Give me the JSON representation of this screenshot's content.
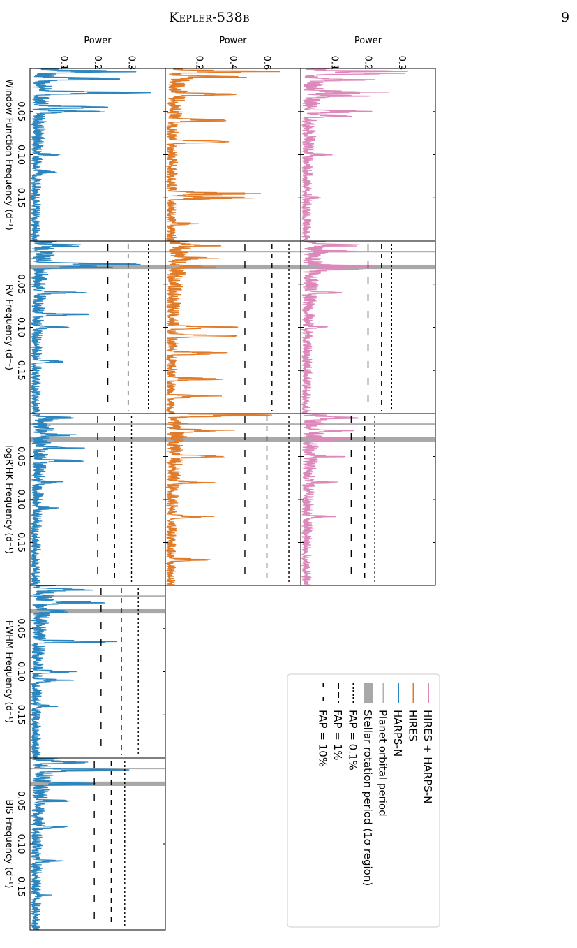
{
  "header": {
    "title": "Kepler-538b",
    "page_number": "9"
  },
  "colors": {
    "combined": "#dd88bb",
    "hires": "#e07b2a",
    "harpsn": "#2b86bf",
    "planet_period": "#b0b0b0",
    "rotation_band": "#a8a8a8",
    "fap": "#000000"
  },
  "chart_data": {
    "type": "line",
    "orientation": "rotated-90-clockwise",
    "freq_range": [
      0.0,
      0.2
    ],
    "freq_ticks": [
      "0.05",
      "0.10",
      "0.15"
    ],
    "freq_tick_values": [
      0.05,
      0.1,
      0.15
    ],
    "planet_orbital_frequency": 0.0123,
    "rotation_band": [
      0.0275,
      0.0325
    ],
    "rows": [
      {
        "id": "combined",
        "series": "HIRES + HARPS-N",
        "color_key": "combined",
        "ylabel": "Power",
        "ylim": [
          0,
          0.4
        ],
        "yticks": [
          "0.1",
          "0.2",
          "0.3"
        ],
        "ytick_values": [
          0.1,
          0.2,
          0.3
        ]
      },
      {
        "id": "hires",
        "series": "HIRES",
        "color_key": "hires",
        "ylabel": "Power",
        "ylim": [
          0,
          0.8
        ],
        "yticks": [
          "0.2",
          "0.4",
          "0.6"
        ],
        "ytick_values": [
          0.2,
          0.4,
          0.6
        ]
      },
      {
        "id": "harpsn",
        "series": "HARPS-N",
        "color_key": "harpsn",
        "ylabel": "Power",
        "ylim": [
          0,
          0.4
        ],
        "yticks": [
          "0.1",
          "0.2",
          "0.3"
        ],
        "ytick_values": [
          0.1,
          0.2,
          0.3
        ]
      }
    ],
    "columns": [
      {
        "id": "window",
        "xlabel": "Window Function Frequency (d$^{-1}$)",
        "xlabel_text": "Window Function Frequency (d⁻¹)"
      },
      {
        "id": "rv",
        "xlabel_text": "RV Frequency (d⁻¹)"
      },
      {
        "id": "logrhk",
        "xlabel_text": "logR′HK Frequency (d⁻¹)"
      },
      {
        "id": "fwhm",
        "xlabel_text": "FWHM Frequency (d⁻¹)"
      },
      {
        "id": "bis",
        "xlabel_text": "BIS Frequency (d⁻¹)"
      }
    ],
    "panels": [
      {
        "row": "combined",
        "col": "window",
        "peaks": [
          [
            0.0035,
            0.34
          ],
          [
            0.0055,
            0.33
          ],
          [
            0.013,
            0.24
          ],
          [
            0.0275,
            0.28
          ],
          [
            0.032,
            0.22
          ],
          [
            0.05,
            0.23
          ],
          [
            0.055,
            0.17
          ],
          [
            0.1,
            0.1
          ],
          [
            0.15,
            0.07
          ]
        ],
        "fap": null
      },
      {
        "row": "combined",
        "col": "rv",
        "peaks": [
          [
            0.005,
            0.22
          ],
          [
            0.012,
            0.18
          ],
          [
            0.029,
            0.23
          ],
          [
            0.033,
            0.2
          ],
          [
            0.06,
            0.13
          ],
          [
            0.1,
            0.09
          ]
        ],
        "fap": [
          0.27,
          0.24,
          0.2
        ]
      },
      {
        "row": "combined",
        "col": "logrhk",
        "peaks": [
          [
            0.005,
            0.19
          ],
          [
            0.02,
            0.16
          ],
          [
            0.03,
            0.19
          ],
          [
            0.05,
            0.15
          ],
          [
            0.08,
            0.12
          ],
          [
            0.12,
            0.11
          ]
        ],
        "fap": [
          0.22,
          0.19,
          0.15
        ]
      },
      {
        "row": "hires",
        "col": "window",
        "peaks": [
          [
            0.0035,
            0.72
          ],
          [
            0.01,
            0.5
          ],
          [
            0.03,
            0.45
          ],
          [
            0.06,
            0.45
          ],
          [
            0.085,
            0.4
          ],
          [
            0.145,
            0.6
          ],
          [
            0.15,
            0.58
          ],
          [
            0.18,
            0.2
          ]
        ],
        "fap": null
      },
      {
        "row": "hires",
        "col": "rv",
        "peaks": [
          [
            0.005,
            0.38
          ],
          [
            0.02,
            0.34
          ],
          [
            0.03,
            0.32
          ],
          [
            0.1,
            0.48
          ],
          [
            0.11,
            0.45
          ],
          [
            0.13,
            0.43
          ],
          [
            0.16,
            0.37
          ],
          [
            0.18,
            0.38
          ]
        ],
        "fap": [
          0.73,
          0.63,
          0.47
        ]
      },
      {
        "row": "hires",
        "col": "logrhk",
        "peaks": [
          [
            0.002,
            0.72
          ],
          [
            0.02,
            0.5
          ],
          [
            0.05,
            0.38
          ],
          [
            0.08,
            0.32
          ],
          [
            0.12,
            0.3
          ],
          [
            0.17,
            0.28
          ]
        ],
        "fap": [
          0.73,
          0.6,
          0.47
        ]
      },
      {
        "row": "harpsn",
        "col": "window",
        "peaks": [
          [
            0.0035,
            0.36
          ],
          [
            0.012,
            0.35
          ],
          [
            0.028,
            0.37
          ],
          [
            0.045,
            0.24
          ],
          [
            0.05,
            0.23
          ],
          [
            0.1,
            0.1
          ],
          [
            0.12,
            0.09
          ]
        ],
        "fap": null
      },
      {
        "row": "harpsn",
        "col": "rv",
        "peaks": [
          [
            0.005,
            0.21
          ],
          [
            0.027,
            0.37
          ],
          [
            0.03,
            0.26
          ],
          [
            0.06,
            0.19
          ],
          [
            0.085,
            0.2
          ],
          [
            0.1,
            0.12
          ],
          [
            0.14,
            0.11
          ]
        ],
        "fap": [
          0.35,
          0.29,
          0.23
        ]
      },
      {
        "row": "harpsn",
        "col": "logrhk",
        "peaks": [
          [
            0.005,
            0.15
          ],
          [
            0.025,
            0.16
          ],
          [
            0.04,
            0.17
          ],
          [
            0.055,
            0.17
          ],
          [
            0.08,
            0.12
          ],
          [
            0.11,
            0.1
          ]
        ],
        "fap": [
          0.3,
          0.25,
          0.2
        ]
      },
      {
        "row": "harpsn",
        "col": "fwhm",
        "peaks": [
          [
            0.005,
            0.2
          ],
          [
            0.02,
            0.25
          ],
          [
            0.03,
            0.15
          ],
          [
            0.065,
            0.27
          ],
          [
            0.1,
            0.15
          ],
          [
            0.11,
            0.13
          ],
          [
            0.14,
            0.09
          ]
        ],
        "fap": [
          0.32,
          0.27,
          0.21
        ]
      },
      {
        "row": "harpsn",
        "col": "bis",
        "peaks": [
          [
            0.005,
            0.2
          ],
          [
            0.014,
            0.3
          ],
          [
            0.03,
            0.21
          ],
          [
            0.05,
            0.14
          ],
          [
            0.08,
            0.12
          ],
          [
            0.12,
            0.1
          ],
          [
            0.16,
            0.08
          ]
        ],
        "fap": [
          0.28,
          0.24,
          0.19
        ]
      }
    ],
    "legend": [
      {
        "label": "HIRES + HARPS-N",
        "style": "line",
        "color_key": "combined"
      },
      {
        "label": "HIRES",
        "style": "line",
        "color_key": "hires"
      },
      {
        "label": "HARPS-N",
        "style": "line",
        "color_key": "harpsn"
      },
      {
        "label": "Planet orbital period",
        "style": "line",
        "color_key": "planet_period"
      },
      {
        "label": "Stellar rotation period (1σ region)",
        "style": "band",
        "color_key": "rotation_band"
      },
      {
        "label": "FAP = 0.1%",
        "style": "dash-fine",
        "color_key": "fap"
      },
      {
        "label": "FAP = 1%",
        "style": "dash-medium",
        "color_key": "fap"
      },
      {
        "label": "FAP = 10%",
        "style": "dash-wide",
        "color_key": "fap"
      }
    ]
  }
}
